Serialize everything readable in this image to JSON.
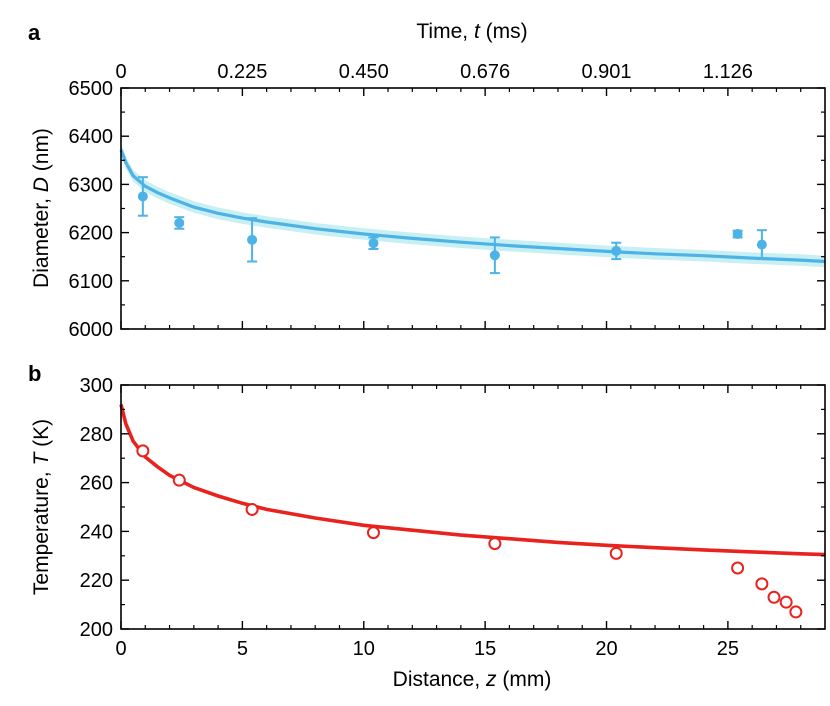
{
  "chart_data": [
    {
      "panel_label": "a",
      "type": "scatter",
      "title": "",
      "top_axis": {
        "label_prefix": "Time, ",
        "label_var": "t",
        "label_suffix": " (ms)",
        "ticks": [
          {
            "z": 0,
            "label": "0"
          },
          {
            "z": 5,
            "label": "0.225"
          },
          {
            "z": 10,
            "label": "0.450"
          },
          {
            "z": 15,
            "label": "0.676"
          },
          {
            "z": 20,
            "label": "0.901"
          },
          {
            "z": 25,
            "label": "1.126"
          }
        ]
      },
      "xlim": [
        0,
        29
      ],
      "ylim": [
        6000,
        6500
      ],
      "ylabel_prefix": "Diameter, ",
      "ylabel_var": "D",
      "ylabel_suffix": " (nm)",
      "yticks": [
        6000,
        6100,
        6200,
        6300,
        6400,
        6500
      ],
      "colors": {
        "marker": "#4db3e6",
        "line": "#4db3e6",
        "band": "#c8eff3"
      },
      "fit": {
        "z": [
          0,
          0.2,
          0.5,
          1,
          1.5,
          2,
          3,
          4,
          5,
          6,
          8,
          10,
          12,
          14,
          16,
          18,
          20,
          22,
          24,
          26,
          28,
          29
        ],
        "y": [
          6372,
          6345,
          6318,
          6296,
          6283,
          6272,
          6253,
          6240,
          6230,
          6222,
          6208,
          6197,
          6188,
          6180,
          6173,
          6167,
          6161,
          6156,
          6152,
          6147,
          6143,
          6140
        ],
        "band_half_width": 12
      },
      "points": [
        {
          "x": 0.9,
          "y": 6275,
          "err": 40
        },
        {
          "x": 2.4,
          "y": 6220,
          "err": 12
        },
        {
          "x": 5.4,
          "y": 6185,
          "err": 45
        },
        {
          "x": 10.4,
          "y": 6178,
          "err": 12
        },
        {
          "x": 15.4,
          "y": 6153,
          "err": 37
        },
        {
          "x": 20.4,
          "y": 6162,
          "err": 17
        },
        {
          "x": 25.4,
          "y": 6197,
          "err": 7
        },
        {
          "x": 26.4,
          "y": 6175,
          "err": 30
        }
      ]
    },
    {
      "panel_label": "b",
      "type": "scatter",
      "title": "",
      "xlabel_prefix": "Distance, ",
      "xlabel_var": "z",
      "xlabel_suffix": " (mm)",
      "xlim": [
        0,
        29
      ],
      "xticks": [
        0,
        5,
        10,
        15,
        20,
        25
      ],
      "ylim": [
        200,
        300
      ],
      "ylabel_prefix": "Temperature, ",
      "ylabel_var": "T",
      "ylabel_suffix": " (K)",
      "yticks": [
        200,
        220,
        240,
        260,
        280,
        300
      ],
      "colors": {
        "marker": "#e8231e",
        "line": "#e8231e"
      },
      "fit": {
        "z": [
          0,
          0.2,
          0.5,
          1,
          1.5,
          2,
          3,
          4,
          5,
          6,
          8,
          10,
          12,
          14,
          16,
          18,
          20,
          22,
          24,
          26,
          28,
          29
        ],
        "y": [
          292,
          284,
          277,
          270.5,
          266.5,
          263,
          258,
          254.5,
          251.5,
          249,
          245.5,
          242.5,
          240.5,
          238.5,
          237,
          235.5,
          234.3,
          233.3,
          232.4,
          231.6,
          230.8,
          230.5
        ]
      },
      "points": [
        {
          "x": 0.9,
          "y": 273
        },
        {
          "x": 2.4,
          "y": 261
        },
        {
          "x": 5.4,
          "y": 249
        },
        {
          "x": 10.4,
          "y": 239.5
        },
        {
          "x": 15.4,
          "y": 235
        },
        {
          "x": 20.4,
          "y": 231
        },
        {
          "x": 25.4,
          "y": 225
        },
        {
          "x": 26.4,
          "y": 218.5
        },
        {
          "x": 26.9,
          "y": 213
        },
        {
          "x": 27.4,
          "y": 211
        },
        {
          "x": 27.8,
          "y": 207
        }
      ]
    }
  ]
}
